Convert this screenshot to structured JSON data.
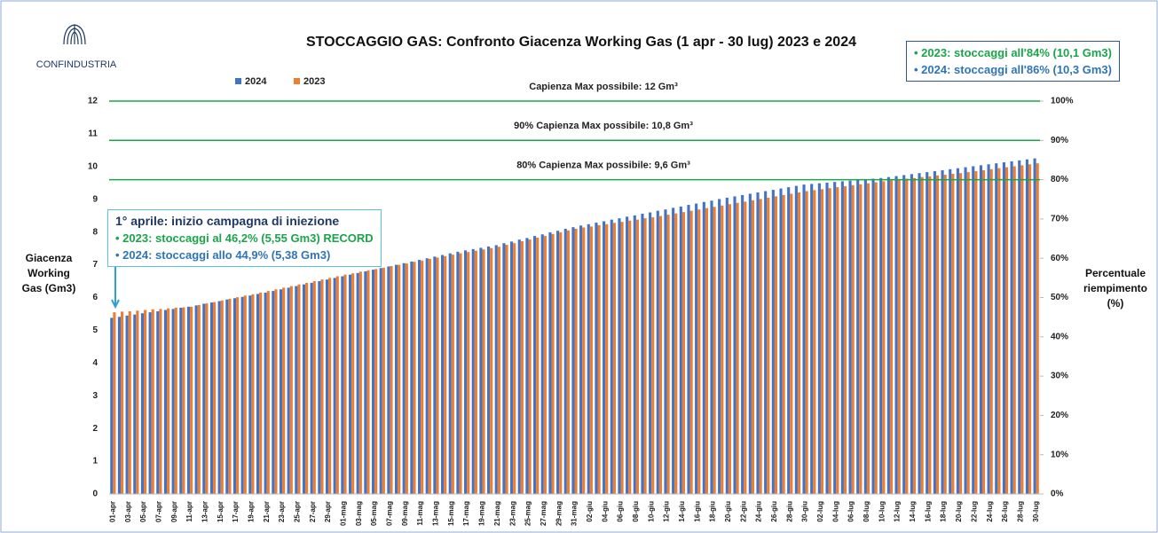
{
  "brand": "CONFINDUSTRIA",
  "chart_data": {
    "type": "bar",
    "title": "STOCCAGGIO GAS: Confronto Giacenza Working Gas (1 apr - 30 lug) 2023 e 2024",
    "y_label": "Giacenza Working Gas (Gm3)",
    "y2_label": "Percentuale riempimento (%)",
    "categories": [
      "01-apr",
      null,
      "03-apr",
      null,
      "05-apr",
      null,
      "07-apr",
      null,
      "09-apr",
      null,
      "11-apr",
      null,
      "13-apr",
      null,
      "15-apr",
      null,
      "17-apr",
      null,
      "19-apr",
      null,
      "21-apr",
      null,
      "23-apr",
      null,
      "25-apr",
      null,
      "27-apr",
      null,
      "29-apr",
      null,
      "01-mag",
      null,
      "03-mag",
      null,
      "05-mag",
      null,
      "07-mag",
      null,
      "09-mag",
      null,
      "11-mag",
      null,
      "13-mag",
      null,
      "15-mag",
      null,
      "17-mag",
      null,
      "19-mag",
      null,
      "21-mag",
      null,
      "23-mag",
      null,
      "25-mag",
      null,
      "27-mag",
      null,
      "29-mag",
      null,
      "31-mag",
      null,
      "02-giu",
      null,
      "04-giu",
      null,
      "06-giu",
      null,
      "08-giu",
      null,
      "10-giu",
      null,
      "12-giu",
      null,
      "14-giu",
      null,
      "16-giu",
      null,
      "18-giu",
      null,
      "20-giu",
      null,
      "22-giu",
      null,
      "24-giu",
      null,
      "26-giu",
      null,
      "28-giu",
      null,
      "30-giu",
      null,
      "02-lug",
      null,
      "04-lug",
      null,
      "06-lug",
      null,
      "08-lug",
      null,
      "10-lug",
      null,
      "12-lug",
      null,
      "14-lug",
      null,
      "16-lug",
      null,
      "18-lug",
      null,
      "20-lug",
      null,
      "22-lug",
      null,
      "24-lug",
      null,
      "26-lug",
      null,
      "28-lug",
      null,
      "30-lug"
    ],
    "series": [
      {
        "name": "2024",
        "color": "#4472c4",
        "values": [
          5.38,
          5.41,
          5.45,
          5.48,
          5.52,
          5.55,
          5.58,
          5.62,
          5.65,
          5.69,
          5.72,
          5.76,
          5.81,
          5.85,
          5.89,
          5.94,
          5.98,
          6.02,
          6.06,
          6.11,
          6.15,
          6.2,
          6.25,
          6.3,
          6.35,
          6.4,
          6.45,
          6.5,
          6.55,
          6.6,
          6.65,
          6.7,
          6.75,
          6.8,
          6.85,
          6.9,
          6.95,
          7.0,
          7.05,
          7.1,
          7.15,
          7.2,
          7.25,
          7.3,
          7.35,
          7.4,
          7.44,
          7.48,
          7.52,
          7.56,
          7.6,
          7.66,
          7.71,
          7.77,
          7.82,
          7.88,
          7.93,
          7.99,
          8.04,
          8.1,
          8.15,
          8.2,
          8.24,
          8.29,
          8.33,
          8.38,
          8.42,
          8.47,
          8.51,
          8.56,
          8.6,
          8.65,
          8.69,
          8.74,
          8.78,
          8.83,
          8.87,
          8.92,
          8.96,
          9.01,
          9.05,
          9.09,
          9.13,
          9.17,
          9.21,
          9.25,
          9.29,
          9.33,
          9.37,
          9.41,
          9.45,
          9.47,
          9.49,
          9.51,
          9.53,
          9.55,
          9.57,
          9.59,
          9.61,
          9.63,
          9.65,
          9.68,
          9.71,
          9.74,
          9.77,
          9.8,
          9.83,
          9.86,
          9.89,
          9.92,
          9.95,
          9.98,
          10.01,
          10.04,
          10.07,
          10.1,
          10.13,
          10.16,
          10.19,
          10.22,
          10.25
        ]
      },
      {
        "name": "2023",
        "color": "#ed7d31",
        "values": [
          5.55,
          5.57,
          5.58,
          5.6,
          5.62,
          5.64,
          5.65,
          5.67,
          5.69,
          5.7,
          5.72,
          5.77,
          5.82,
          5.86,
          5.91,
          5.96,
          6.01,
          6.06,
          6.1,
          6.15,
          6.2,
          6.25,
          6.3,
          6.35,
          6.4,
          6.45,
          6.5,
          6.55,
          6.6,
          6.65,
          6.7,
          6.74,
          6.79,
          6.83,
          6.87,
          6.91,
          6.96,
          7.0,
          7.04,
          7.09,
          7.13,
          7.18,
          7.22,
          7.26,
          7.31,
          7.35,
          7.39,
          7.43,
          7.47,
          7.51,
          7.55,
          7.61,
          7.66,
          7.72,
          7.77,
          7.83,
          7.88,
          7.94,
          7.99,
          8.05,
          8.1,
          8.14,
          8.17,
          8.21,
          8.24,
          8.28,
          8.31,
          8.35,
          8.38,
          8.42,
          8.45,
          8.49,
          8.53,
          8.57,
          8.61,
          8.65,
          8.69,
          8.73,
          8.77,
          8.81,
          8.85,
          8.89,
          8.93,
          8.97,
          9.01,
          9.05,
          9.09,
          9.13,
          9.17,
          9.21,
          9.25,
          9.28,
          9.31,
          9.34,
          9.37,
          9.4,
          9.43,
          9.46,
          9.49,
          9.52,
          9.55,
          9.58,
          9.6,
          9.63,
          9.65,
          9.68,
          9.7,
          9.73,
          9.75,
          9.78,
          9.8,
          9.83,
          9.86,
          9.89,
          9.92,
          9.95,
          9.98,
          10.01,
          10.04,
          10.07,
          10.1
        ]
      }
    ],
    "ylim": [
      0,
      12
    ],
    "yticks": [
      0,
      1,
      2,
      3,
      4,
      5,
      6,
      7,
      8,
      9,
      10,
      11,
      12
    ],
    "y2lim": [
      0,
      100
    ],
    "y2ticks": [
      {
        "value": 0,
        "label": "0%"
      },
      {
        "value": 10,
        "label": "10%"
      },
      {
        "value": 20,
        "label": "20%"
      },
      {
        "value": 30,
        "label": "30%"
      },
      {
        "value": 40,
        "label": "40%"
      },
      {
        "value": 50,
        "label": "50%"
      },
      {
        "value": 60,
        "label": "60%"
      },
      {
        "value": 70,
        "label": "70%"
      },
      {
        "value": 80,
        "label": "80%"
      },
      {
        "value": 90,
        "label": "90%"
      },
      {
        "value": 100,
        "label": "100%"
      }
    ],
    "reference_lines": [
      {
        "value": 12,
        "label": "Capienza Max possibile: 12 Gm³",
        "color": "#1aa54a"
      },
      {
        "value": 10.8,
        "label": "90% Capienza Max possibile: 10,8 Gm³",
        "color": "#1aa54a"
      },
      {
        "value": 9.6,
        "label": "80% Capienza Max possibile: 9,6 Gm³",
        "color": "#1aa54a"
      }
    ],
    "annotations": {
      "start_box": [
        "1° aprile: inizio campagna di iniezione",
        "• 2023: stoccaggi al 46,2% (5,55 Gm3) RECORD",
        "• 2024: stoccaggi allo 44,9% (5,38 Gm3)"
      ],
      "summary_box": [
        "• 2023: stoccaggi all'84% (10,1 Gm3)",
        "• 2024: stoccaggi all'86% (10,3 Gm3)"
      ]
    }
  }
}
